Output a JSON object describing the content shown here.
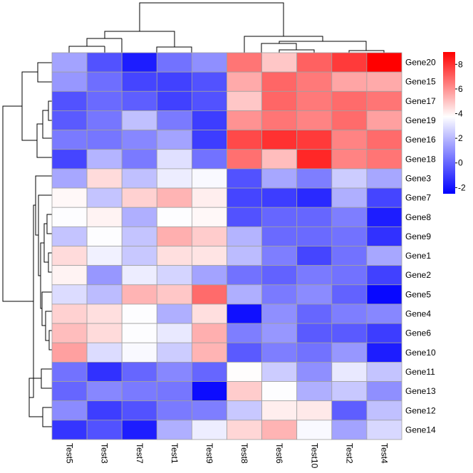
{
  "chart_data": {
    "type": "heatmap",
    "title": "",
    "xlabel": "",
    "ylabel": "",
    "columns": [
      "Test5",
      "Test3",
      "Test7",
      "Test1",
      "Test9",
      "Test8",
      "Test6",
      "Test10",
      "Test2",
      "Test4"
    ],
    "rows": [
      "Gene20",
      "Gene15",
      "Gene17",
      "Gene19",
      "Gene16",
      "Gene18",
      "Gene3",
      "Gene7",
      "Gene8",
      "Gene9",
      "Gene1",
      "Gene2",
      "Gene5",
      "Gene4",
      "Gene6",
      "Gene10",
      "Gene11",
      "Gene13",
      "Gene12",
      "Gene14"
    ],
    "values": [
      [
        1.5,
        -0.5,
        -1.8,
        0.3,
        1.0,
        6.6,
        4.9,
        7.0,
        7.8,
        9.0
      ],
      [
        1.2,
        0.2,
        -0.8,
        -0.9,
        -0.5,
        5.5,
        6.9,
        6.5,
        5.6,
        5.5
      ],
      [
        -0.5,
        0.1,
        -0.2,
        -0.9,
        -0.5,
        4.9,
        6.9,
        6.5,
        6.8,
        6.6
      ],
      [
        -0.3,
        0.4,
        2.2,
        0.5,
        -1.0,
        6.0,
        6.6,
        6.3,
        6.8,
        5.7
      ],
      [
        0.5,
        0.4,
        0.8,
        1.5,
        -1.0,
        7.5,
        8.0,
        7.8,
        6.3,
        6.8
      ],
      [
        -0.8,
        1.9,
        0.5,
        3.0,
        0.3,
        6.7,
        5.1,
        8.2,
        6.3,
        6.6
      ],
      [
        1.6,
        4.5,
        2.2,
        3.3,
        3.6,
        -0.5,
        1.6,
        0.6,
        2.5,
        1.6
      ],
      [
        3.9,
        2.3,
        4.7,
        5.3,
        4.1,
        -0.8,
        -1.0,
        -1.5,
        1.8,
        -0.8
      ],
      [
        3.7,
        4.0,
        1.8,
        3.7,
        3.9,
        -0.5,
        0.0,
        0.0,
        0.6,
        -1.8
      ],
      [
        2.3,
        3.7,
        2.3,
        5.4,
        4.8,
        1.9,
        0.1,
        0.1,
        0.3,
        -1.3
      ],
      [
        4.5,
        3.4,
        2.4,
        4.4,
        4.3,
        2.1,
        0.6,
        -0.8,
        0.3,
        1.6
      ],
      [
        4.0,
        1.2,
        3.3,
        2.7,
        1.5,
        0.3,
        -0.1,
        0.5,
        0.3,
        -0.9
      ],
      [
        2.9,
        2.1,
        5.3,
        4.9,
        6.8,
        1.8,
        0.5,
        0.9,
        -0.1,
        -2.3
      ],
      [
        4.7,
        4.4,
        3.7,
        1.8,
        4.4,
        -2.1,
        1.0,
        0.0,
        0.6,
        0.8
      ],
      [
        5.1,
        4.5,
        3.7,
        3.2,
        5.4,
        0.6,
        1.2,
        -0.3,
        -0.3,
        -1.0
      ],
      [
        5.7,
        2.9,
        3.6,
        2.5,
        5.3,
        -0.3,
        0.6,
        0.3,
        1.2,
        -1.8
      ],
      [
        0.3,
        -1.3,
        0.0,
        0.8,
        0.0,
        3.8,
        2.5,
        1.0,
        3.2,
        2.3
      ],
      [
        0.0,
        0.8,
        0.5,
        0.4,
        -2.2,
        4.8,
        3.7,
        1.8,
        2.4,
        1.0
      ],
      [
        0.9,
        -1.0,
        -0.5,
        0.5,
        0.6,
        2.4,
        4.1,
        4.2,
        -0.2,
        2.2
      ],
      [
        -1.2,
        -0.5,
        -1.8,
        1.8,
        3.3,
        4.6,
        5.3,
        3.6,
        1.5,
        2.8
      ]
    ],
    "color_scale": {
      "min": -2.5,
      "mid": 3.75,
      "max": 9.0,
      "low_color": "#0000ff",
      "mid_color": "#ffffff",
      "high_color": "#ff0000"
    },
    "legend": {
      "position": "right",
      "ticks": [
        -2,
        0,
        2,
        4,
        6,
        8
      ]
    },
    "grid": true,
    "grid_color": "#a0a0a0",
    "row_dendrogram": true,
    "column_dendrogram": true
  }
}
